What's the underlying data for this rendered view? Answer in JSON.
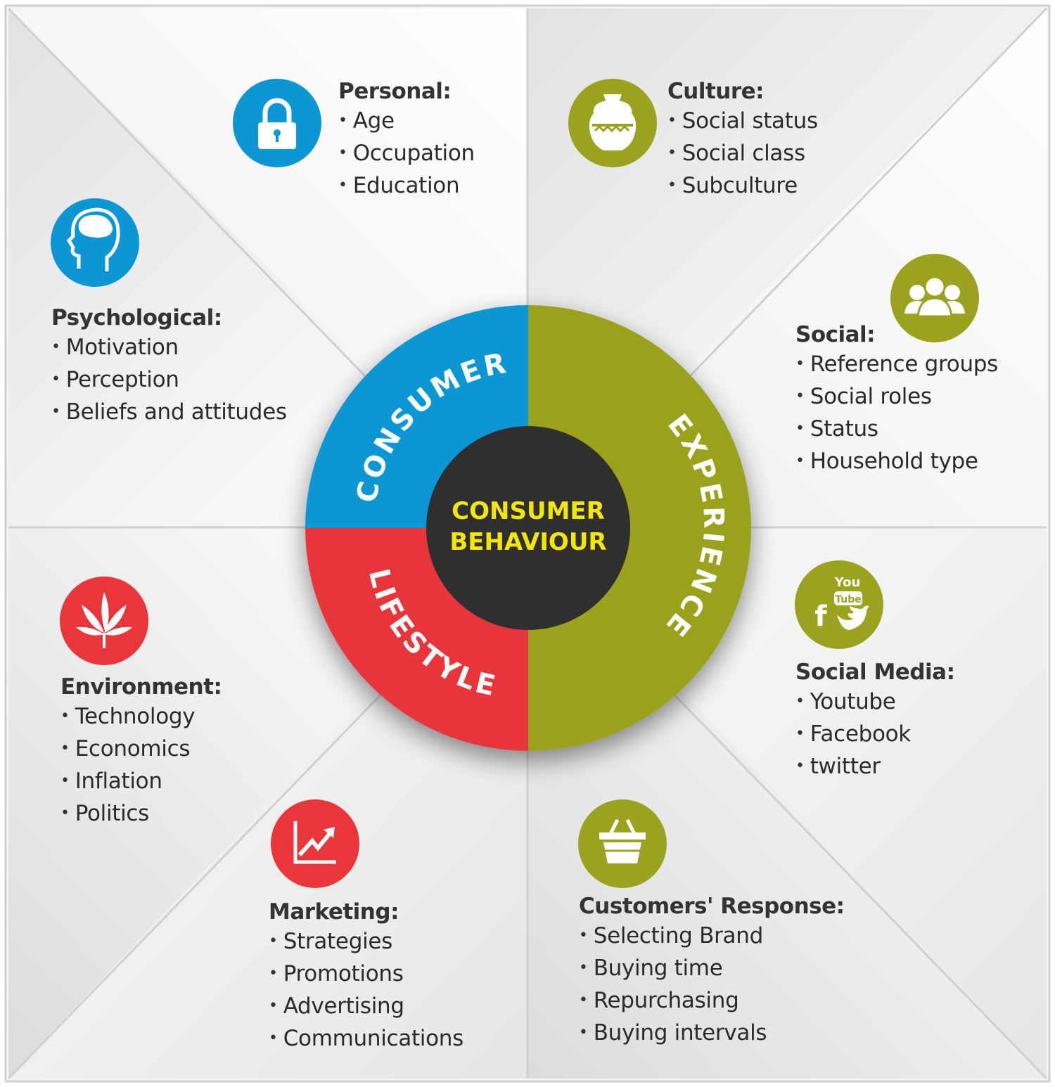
{
  "colors": {
    "blue": "#0d96d4",
    "olive": "#9aa21f",
    "red": "#e8363a",
    "dark": "#2f2f2f",
    "center_text": "#f3e600",
    "panel": "#f3f3f3"
  },
  "center": {
    "line1": "CONSUMER",
    "line2": "BEHAVIOUR"
  },
  "ring": {
    "consumer": "CONSUMER",
    "experience": "EXPERIENCE",
    "lifestyle": "LIFESTYLE"
  },
  "factors": {
    "personal": {
      "icon": "lock-icon",
      "color": "blue",
      "heading": "Personal:",
      "items": [
        "Age",
        "Occupation",
        "Education"
      ]
    },
    "culture": {
      "icon": "vase-icon",
      "color": "olive",
      "heading": "Culture:",
      "items": [
        "Social status",
        "Social class",
        "Subculture"
      ]
    },
    "psychological": {
      "icon": "head-brain-icon",
      "color": "blue",
      "heading": "Psychological:",
      "items": [
        "Motivation",
        "Perception",
        "Beliefs and attitudes"
      ]
    },
    "social": {
      "icon": "people-group-icon",
      "color": "olive",
      "heading": "Social:",
      "items": [
        "Reference groups",
        "Social roles",
        "Status",
        "Household type"
      ]
    },
    "environment": {
      "icon": "leaf-icon",
      "color": "red",
      "heading": "Environment:",
      "items": [
        "Technology",
        "Economics",
        "Inflation",
        "Politics"
      ]
    },
    "social_media": {
      "icon": "social-media-icon",
      "color": "olive",
      "heading": "Social Media:",
      "icon_text": {
        "you": "You",
        "tube": "Tube",
        "f": "f"
      },
      "items": [
        "Youtube",
        "Facebook",
        "twitter"
      ]
    },
    "marketing": {
      "icon": "growth-chart-icon",
      "color": "red",
      "heading": "Marketing:",
      "items": [
        "Strategies",
        "Promotions",
        "Advertising",
        "Communications"
      ]
    },
    "response": {
      "icon": "basket-icon",
      "color": "olive",
      "heading": "Customers' Response:",
      "items": [
        "Selecting Brand",
        "Buying time",
        "Repurchasing",
        "Buying intervals"
      ]
    }
  }
}
